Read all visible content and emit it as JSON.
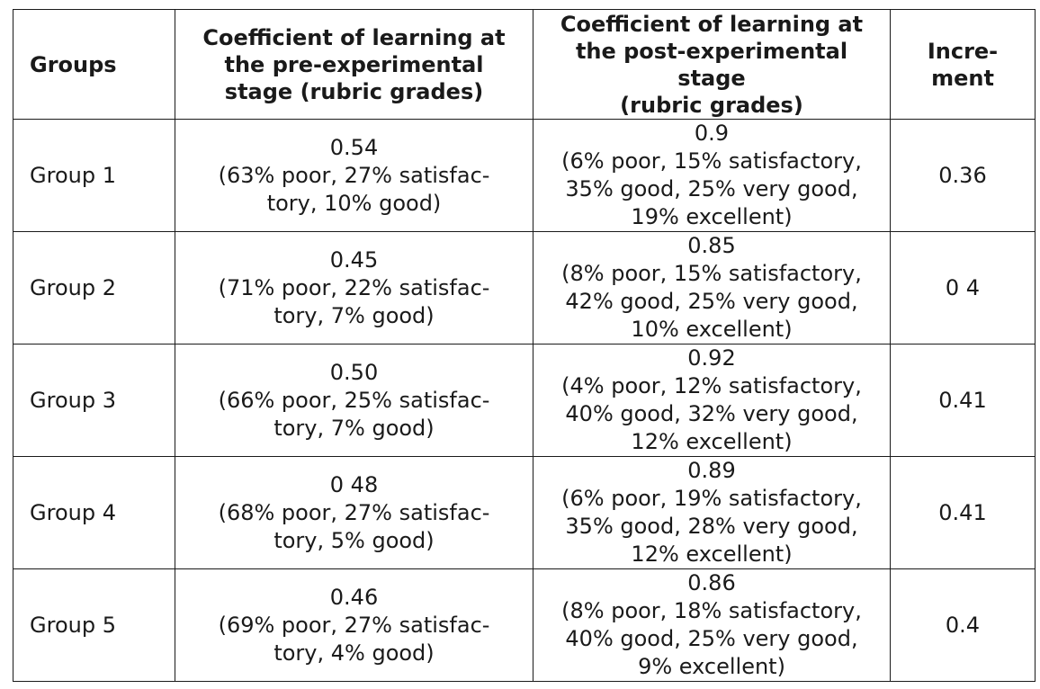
{
  "table": {
    "headers": {
      "groups": "Groups",
      "pre": [
        "Coefficient of learning at",
        "the pre-experimental",
        "stage (rubric grades)"
      ],
      "post": [
        "Coefficient of learning at",
        "the post-experimental",
        "stage",
        "(rubric grades)"
      ],
      "increment": [
        "Incre-",
        "ment"
      ]
    },
    "rows": [
      {
        "group": "Group 1",
        "pre": [
          "0.54",
          "(63% poor, 27% satisfac-",
          "tory, 10% good)"
        ],
        "post": [
          "0.9",
          "(6% poor, 15% satisfactory,",
          "35% good, 25% very good,",
          "19% excellent)"
        ],
        "increment": "0.36"
      },
      {
        "group": "Group 2",
        "pre": [
          "0.45",
          "(71% poor, 22% satisfac-",
          "tory, 7% good)"
        ],
        "post": [
          "0.85",
          "(8% poor, 15% satisfactory,",
          "42% good, 25% very good,",
          "10% excellent)"
        ],
        "increment": "0 4"
      },
      {
        "group": "Group 3",
        "pre": [
          "0.50",
          "(66% poor, 25% satisfac-",
          "tory, 7% good)"
        ],
        "post": [
          "0.92",
          "(4% poor, 12% satisfactory,",
          "40% good, 32% very good,",
          "12% excellent)"
        ],
        "increment": "0.41"
      },
      {
        "group": "Group 4",
        "pre": [
          "0 48",
          "(68% poor, 27% satisfac-",
          "tory, 5% good)"
        ],
        "post": [
          "0.89",
          "(6% poor, 19% satisfactory,",
          "35% good, 28% very good,",
          "12% excellent)"
        ],
        "increment": "0.41"
      },
      {
        "group": "Group 5",
        "pre": [
          "0.46",
          "(69% poor, 27% satisfac-",
          "tory, 4% good)"
        ],
        "post": [
          "0.86",
          "(8% poor, 18% satisfactory,",
          "40% good, 25% very good,",
          "9% excellent)"
        ],
        "increment": "0.4"
      }
    ]
  }
}
